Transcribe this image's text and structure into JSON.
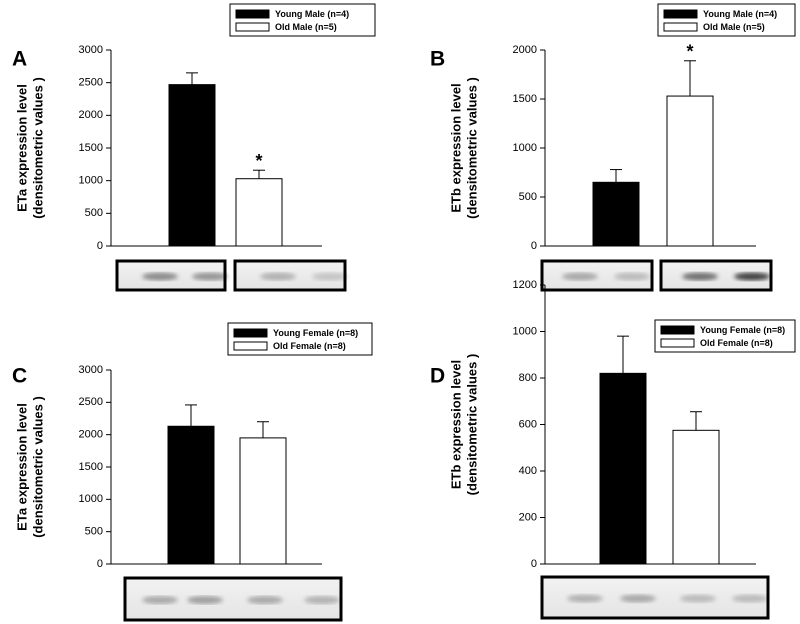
{
  "chart_data": [
    {
      "type": "bar",
      "panel_label": "A",
      "ylabel": [
        "ETa expression level",
        "(densitometric values )"
      ],
      "categories": [
        null
      ],
      "ylim": [
        0,
        3000
      ],
      "yticks": [
        0,
        500,
        1000,
        1500,
        2000,
        2500,
        3000
      ],
      "series": [
        {
          "name": "Young Male (n=4)",
          "color": "#000000",
          "values": [
            2470
          ],
          "errors": [
            180
          ]
        },
        {
          "name": "Old Male (n=5)",
          "color": "#ffffff",
          "values": [
            1030
          ],
          "errors": [
            130
          ],
          "annotation": "*"
        }
      ]
    },
    {
      "type": "bar",
      "panel_label": "B",
      "ylabel": [
        "ETb expression level",
        "(densitometric values )"
      ],
      "categories": [
        null
      ],
      "ylim": [
        0,
        2000
      ],
      "yticks": [
        0,
        500,
        1000,
        1500,
        2000
      ],
      "series": [
        {
          "name": "Young Male (n=4)",
          "color": "#000000",
          "values": [
            650
          ],
          "errors": [
            130
          ]
        },
        {
          "name": "Old Male (n=5)",
          "color": "#ffffff",
          "values": [
            1530
          ],
          "errors": [
            360
          ],
          "annotation": "*"
        }
      ]
    },
    {
      "type": "bar",
      "panel_label": "C",
      "ylabel": [
        "ETa expression level",
        "(densitometric values )"
      ],
      "categories": [
        null
      ],
      "ylim": [
        0,
        3000
      ],
      "yticks": [
        0,
        500,
        1000,
        1500,
        2000,
        2500,
        3000
      ],
      "series": [
        {
          "name": "Young Female (n=8)",
          "color": "#000000",
          "values": [
            2130
          ],
          "errors": [
            330
          ]
        },
        {
          "name": "Old Female (n=8)",
          "color": "#ffffff",
          "values": [
            1950
          ],
          "errors": [
            250
          ]
        }
      ]
    },
    {
      "type": "bar",
      "panel_label": "D",
      "ylabel": [
        "ETb expression level",
        "(densitometric values )"
      ],
      "categories": [
        null
      ],
      "ylim": [
        0,
        1200
      ],
      "yticks": [
        0,
        200,
        400,
        600,
        800,
        1000,
        1200
      ],
      "series": [
        {
          "name": "Young Female (n=8)",
          "color": "#000000",
          "values": [
            820
          ],
          "errors": [
            160
          ]
        },
        {
          "name": "Old Female (n=8)",
          "color": "#ffffff",
          "values": [
            575
          ],
          "errors": [
            80
          ]
        }
      ]
    }
  ]
}
